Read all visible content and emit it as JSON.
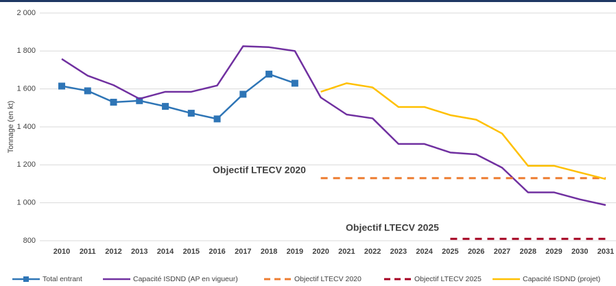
{
  "chart_data": {
    "type": "line",
    "y_label": "Tonnage (en kt)",
    "categories": [
      "2010",
      "2011",
      "2012",
      "2013",
      "2014",
      "2015",
      "2016",
      "2017",
      "2018",
      "2019",
      "2020",
      "2021",
      "2022",
      "2023",
      "2024",
      "2025",
      "2026",
      "2027",
      "2028",
      "2029",
      "2030",
      "2031"
    ],
    "series": [
      {
        "name": "Total entrant",
        "color": "#2e75b6",
        "marker": "square",
        "dashed": false,
        "values": [
          1615,
          1590,
          1530,
          1538,
          1508,
          1472,
          1442,
          1572,
          1678,
          1630,
          null,
          null,
          null,
          null,
          null,
          null,
          null,
          null,
          null,
          null,
          null,
          null
        ]
      },
      {
        "name": "Capacité ISDND (AP en vigueur)",
        "color": "#7030a0",
        "dashed": false,
        "values": [
          1758,
          1670,
          1620,
          1548,
          1585,
          1585,
          1618,
          1825,
          1820,
          1800,
          1555,
          1465,
          1445,
          1310,
          1310,
          1265,
          1255,
          1185,
          1055,
          1055,
          1018,
          988
        ]
      },
      {
        "name": "Objectif LTECV 2020",
        "color": "#ed7d31",
        "dashed": true,
        "values": [
          null,
          null,
          null,
          null,
          null,
          null,
          null,
          null,
          null,
          null,
          1130,
          1130,
          1130,
          1130,
          1130,
          1130,
          1130,
          1130,
          1130,
          1130,
          1130,
          1130
        ]
      },
      {
        "name": "Objectif LTECV 2025",
        "color": "#a50021",
        "dashed": true,
        "values": [
          null,
          null,
          null,
          null,
          null,
          null,
          null,
          null,
          null,
          null,
          null,
          null,
          null,
          null,
          null,
          810,
          810,
          810,
          810,
          810,
          810,
          810
        ]
      },
      {
        "name": "Capacité ISDND (projet)",
        "color": "#ffc000",
        "dashed": false,
        "values": [
          null,
          null,
          null,
          null,
          null,
          null,
          null,
          null,
          null,
          null,
          1585,
          1630,
          1608,
          1505,
          1505,
          1462,
          1438,
          1365,
          1195,
          1195,
          1160,
          1125
        ]
      }
    ],
    "annotations": [
      {
        "text": "Objectif LTECV 2020",
        "color": "#ed7d31"
      },
      {
        "text": "Objectif LTECV 2025",
        "color": "#a50021"
      }
    ],
    "ylim": [
      800,
      2000
    ],
    "yticks": [
      800,
      {
        "value": 1000,
        "label": "1 000"
      },
      {
        "value": 1200,
        "label": "1 200"
      },
      {
        "value": 1400,
        "label": "1 400"
      },
      {
        "value": 1600,
        "label": "1 600"
      },
      {
        "value": 1800,
        "label": "1 800"
      },
      {
        "value": 2000,
        "label": "2 000"
      }
    ],
    "grid": true,
    "legend": "bottom"
  }
}
